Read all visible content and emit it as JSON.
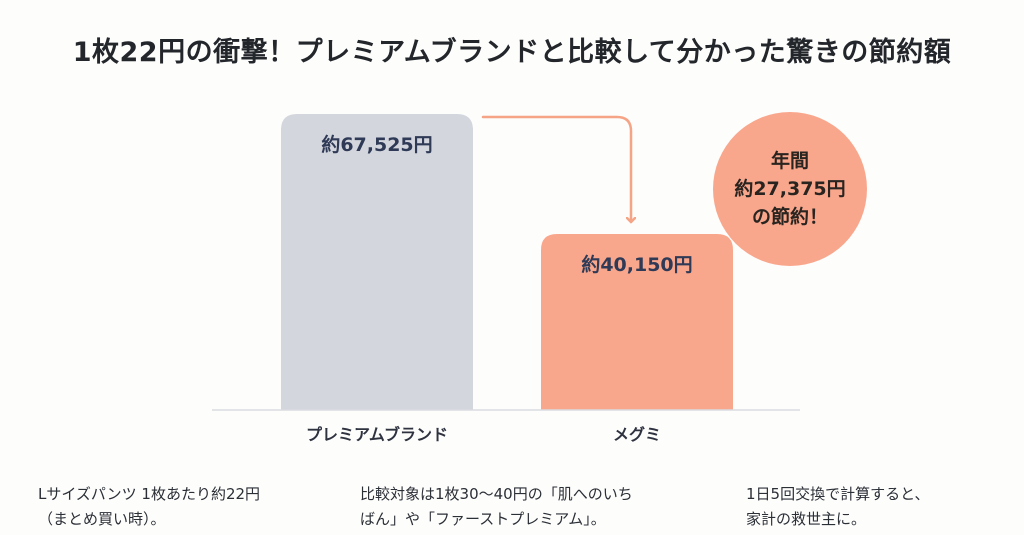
{
  "title": "1枚22円の衝撃！プレミアムブランドと比較して分かった驚きの節約額",
  "badge": {
    "line1": "年間",
    "line2": "約27,375円",
    "line3": "の節約！",
    "color": "#f9a78c"
  },
  "notes": [
    {
      "line1": "Lサイズパンツ 1枚あたり約22円",
      "line2": "（まとめ買い時）。"
    },
    {
      "line1": "比較対象は1枚30〜40円の「肌へのいち",
      "line2": "ばん」や「ファーストプレミアム」。"
    },
    {
      "line1": "1日5回交換で計算すると、",
      "line2": "家計の救世主に。"
    }
  ],
  "chart_data": {
    "type": "bar",
    "categories": [
      "プレミアムブランド",
      "メグミ"
    ],
    "values": [
      67525,
      40150
    ],
    "labels": [
      "約67,525円",
      "約40,150円"
    ],
    "unit": "円",
    "colors": [
      "#d3d6dd",
      "#f9a78c"
    ],
    "arrow_color": "#f6a486",
    "ylim": [
      0,
      67525
    ],
    "grid": false
  }
}
